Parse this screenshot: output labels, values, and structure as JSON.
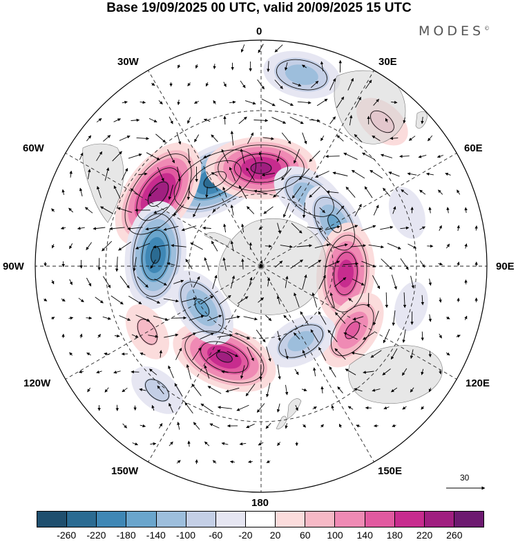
{
  "title": "Base 19/09/2025 00 UTC, valid 20/09/2025 15 UTC",
  "brand": "MODES",
  "brand_mark": "©",
  "longitude_labels": {
    "lon_0": "0",
    "lon_30e": "30E",
    "lon_60e": "60E",
    "lon_90e": "90E",
    "lon_120e": "120E",
    "lon_150e": "150E",
    "lon_180": "180",
    "lon_150w": "150W",
    "lon_120w": "120W",
    "lon_90w": "90W",
    "lon_60w": "60W",
    "lon_30w": "30W"
  },
  "reference_vector_label": "30",
  "colorbar": {
    "colors": [
      "#1f4f6e",
      "#2b6b92",
      "#3f87b5",
      "#6aa5cc",
      "#9dbedc",
      "#c4cfe6",
      "#e6e6f2",
      "#ffffff",
      "#fbdcdc",
      "#f6b9c6",
      "#ef8ab4",
      "#e15aa0",
      "#c72c8e",
      "#a01f80",
      "#6d1a70"
    ],
    "tick_labels": [
      "-260",
      "-220",
      "-180",
      "-140",
      "-100",
      "-60",
      "-20",
      "20",
      "60",
      "100",
      "140",
      "180",
      "220",
      "260"
    ]
  },
  "anomaly_centres": [
    {
      "lon": -28,
      "lat": -50,
      "value": -240
    },
    {
      "lon": -55,
      "lat": -40,
      "value": 250
    },
    {
      "lon": -84,
      "lat": -47,
      "value": -220
    },
    {
      "lon": 0,
      "lat": -50,
      "value": 230
    },
    {
      "lon": 12,
      "lat": -18,
      "value": -120
    },
    {
      "lon": 35,
      "lat": -55,
      "value": -130
    },
    {
      "lon": 60,
      "lat": -55,
      "value": -140
    },
    {
      "lon": 95,
      "lat": -55,
      "value": 200
    },
    {
      "lon": 125,
      "lat": -45,
      "value": 140
    },
    {
      "lon": 152,
      "lat": -55,
      "value": -110
    },
    {
      "lon": -158,
      "lat": -50,
      "value": 220
    },
    {
      "lon": -125,
      "lat": -60,
      "value": -140
    },
    {
      "lon": -120,
      "lat": -38,
      "value": 60
    },
    {
      "lon": -140,
      "lat": -28,
      "value": -60
    },
    {
      "lon": 40,
      "lat": -20,
      "value": 60
    },
    {
      "lon": 70,
      "lat": -30,
      "value": -40
    },
    {
      "lon": 105,
      "lat": -30,
      "value": -30
    }
  ]
}
